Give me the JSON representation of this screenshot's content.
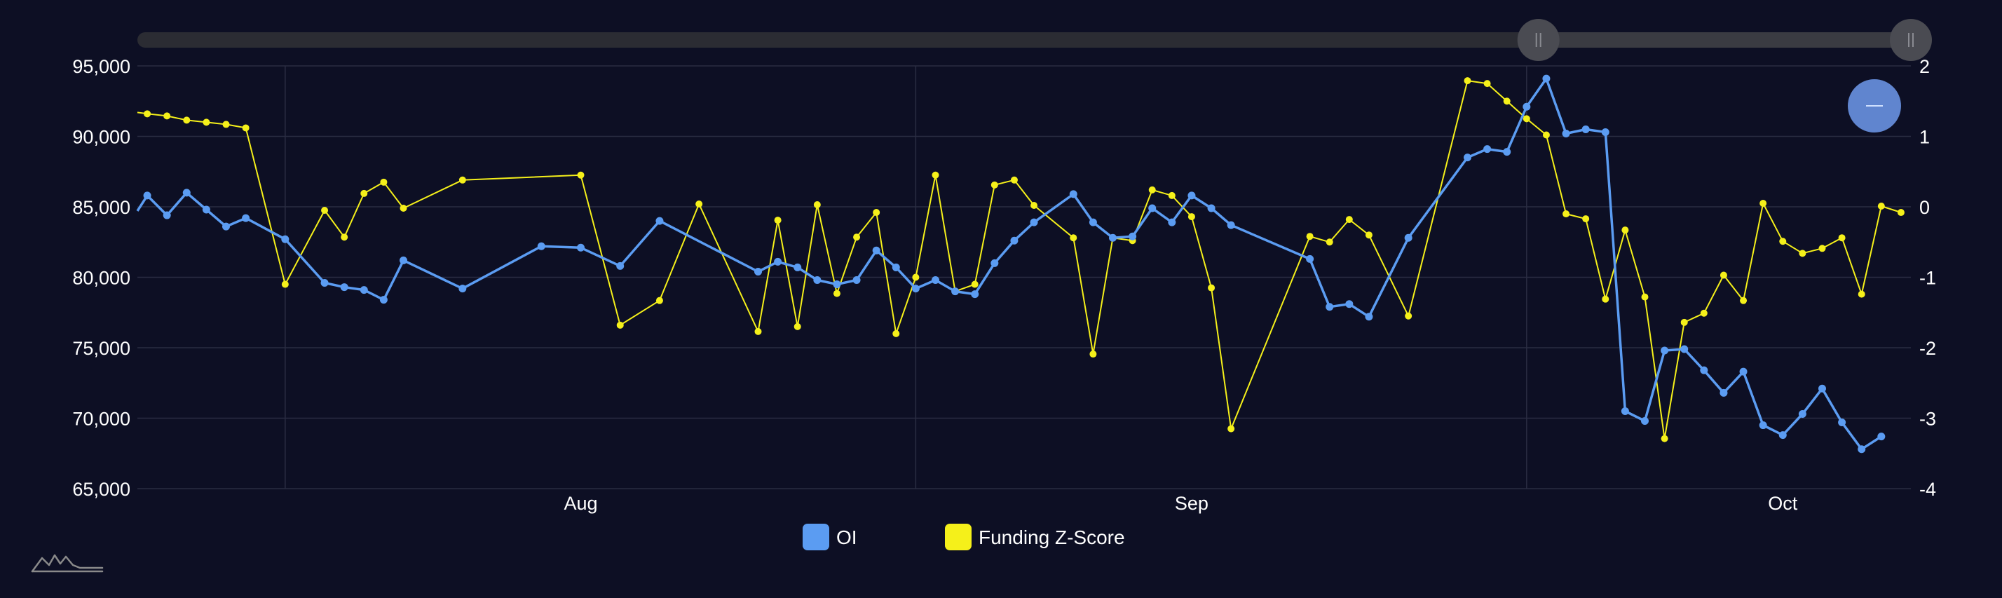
{
  "colors": {
    "background": "#0d0f24",
    "grid": "#2a2d42",
    "oi": "#5b9cf2",
    "funding": "#f5f01a",
    "scrollbar_track": "#2b2c33",
    "scrollbar_selected": "#3a3b42",
    "scrollbar_handle": "#4a4b52",
    "zoom_button": "#6085cf"
  },
  "icons": {
    "zoom_button": "minus-icon",
    "brand_logo": "mountain-logo-icon"
  },
  "legend": {
    "oi_label": "OI",
    "funding_label": "Funding Z-Score"
  },
  "navigator": {
    "selected_range": [
      0.79,
      1.0
    ]
  },
  "chart_data": {
    "type": "line",
    "x_tick_labels": [
      "Aug",
      "Sep",
      "Oct"
    ],
    "y_left": {
      "ticks": [
        "65,000",
        "70,000",
        "75,000",
        "80,000",
        "85,000",
        "90,000",
        "95,000"
      ],
      "min": 65000,
      "max": 95000
    },
    "y_right": {
      "ticks": [
        "-4",
        "-3",
        "-2",
        "-1",
        "0",
        "1",
        "2"
      ],
      "min": -4,
      "max": 2
    },
    "grid": true,
    "legend_position": "bottom-center",
    "series": [
      {
        "name": "OI",
        "axis": "left",
        "points": [
          [
            "Jul 10",
            85800
          ],
          [
            "Jul 11",
            84400
          ],
          [
            "Jul 12",
            86000
          ],
          [
            "Jul 13",
            84800
          ],
          [
            "Jul 14",
            83600
          ],
          [
            "Jul 15",
            84200
          ],
          [
            "Jul 17",
            82700
          ],
          [
            "Jul 19",
            79600
          ],
          [
            "Jul 20",
            79300
          ],
          [
            "Jul 21",
            79100
          ],
          [
            "Jul 22",
            78400
          ],
          [
            "Jul 23",
            81200
          ],
          [
            "Jul 26",
            79200
          ],
          [
            "Jul 30",
            82200
          ],
          [
            "Aug 1",
            82100
          ],
          [
            "Aug 3",
            80800
          ],
          [
            "Aug 5",
            84000
          ],
          [
            "Aug 10",
            80400
          ],
          [
            "Aug 11",
            81100
          ],
          [
            "Aug 12",
            80700
          ],
          [
            "Aug 13",
            79800
          ],
          [
            "Aug 14",
            79500
          ],
          [
            "Aug 15",
            79800
          ],
          [
            "Aug 16",
            81900
          ],
          [
            "Aug 17",
            80700
          ],
          [
            "Aug 18",
            79200
          ],
          [
            "Aug 19",
            79800
          ],
          [
            "Aug 20",
            79000
          ],
          [
            "Aug 21",
            78800
          ],
          [
            "Aug 22",
            81000
          ],
          [
            "Aug 23",
            82600
          ],
          [
            "Aug 24",
            83900
          ],
          [
            "Aug 26",
            85900
          ],
          [
            "Aug 27",
            83900
          ],
          [
            "Aug 28",
            82800
          ],
          [
            "Aug 29",
            82900
          ],
          [
            "Aug 30",
            84900
          ],
          [
            "Aug 31",
            83900
          ],
          [
            "Sep 1",
            85800
          ],
          [
            "Sep 2",
            84900
          ],
          [
            "Sep 3",
            83700
          ],
          [
            "Sep 7",
            81300
          ],
          [
            "Sep 8",
            77900
          ],
          [
            "Sep 9",
            78100
          ],
          [
            "Sep 10",
            77200
          ],
          [
            "Sep 12",
            82800
          ],
          [
            "Sep 15",
            88500
          ],
          [
            "Sep 16",
            89100
          ],
          [
            "Sep 17",
            88900
          ],
          [
            "Sep 18",
            92100
          ],
          [
            "Sep 19",
            94100
          ],
          [
            "Sep 20",
            90200
          ],
          [
            "Sep 21",
            90500
          ],
          [
            "Sep 22",
            90300
          ],
          [
            "Sep 23",
            70500
          ],
          [
            "Sep 24",
            69800
          ],
          [
            "Sep 25",
            74800
          ],
          [
            "Sep 26",
            74900
          ],
          [
            "Sep 27",
            73400
          ],
          [
            "Sep 28",
            71800
          ],
          [
            "Sep 29",
            73300
          ],
          [
            "Sep 30",
            69500
          ],
          [
            "Oct 1",
            68800
          ],
          [
            "Oct 2",
            70300
          ],
          [
            "Oct 3",
            72100
          ],
          [
            "Oct 4",
            69700
          ],
          [
            "Oct 5",
            67800
          ],
          [
            "Oct 6",
            68700
          ]
        ]
      },
      {
        "name": "Funding Z-Score",
        "axis": "right",
        "points": [
          [
            "Jul 10",
            1.32
          ],
          [
            "Jul 11",
            1.29
          ],
          [
            "Jul 12",
            1.23
          ],
          [
            "Jul 13",
            1.2
          ],
          [
            "Jul 14",
            1.17
          ],
          [
            "Jul 15",
            1.12
          ],
          [
            "Jul 17",
            -1.1
          ],
          [
            "Jul 19",
            -0.05
          ],
          [
            "Jul 20",
            -0.43
          ],
          [
            "Jul 21",
            0.19
          ],
          [
            "Jul 22",
            0.35
          ],
          [
            "Jul 23",
            -0.02
          ],
          [
            "Jul 26",
            0.38
          ],
          [
            "Aug 1",
            0.45
          ],
          [
            "Aug 3",
            -1.68
          ],
          [
            "Aug 5",
            -1.33
          ],
          [
            "Aug 7",
            0.04
          ],
          [
            "Aug 10",
            -1.77
          ],
          [
            "Aug 11",
            -0.19
          ],
          [
            "Aug 12",
            -1.7
          ],
          [
            "Aug 13",
            0.03
          ],
          [
            "Aug 14",
            -1.23
          ],
          [
            "Aug 15",
            -0.43
          ],
          [
            "Aug 16",
            -0.08
          ],
          [
            "Aug 17",
            -1.8
          ],
          [
            "Aug 18",
            -1.0
          ],
          [
            "Aug 19",
            0.45
          ],
          [
            "Aug 20",
            -1.2
          ],
          [
            "Aug 21",
            -1.1
          ],
          [
            "Aug 22",
            0.31
          ],
          [
            "Aug 23",
            0.38
          ],
          [
            "Aug 24",
            0.02
          ],
          [
            "Aug 26",
            -0.44
          ],
          [
            "Aug 27",
            -2.09
          ],
          [
            "Aug 28",
            -0.44
          ],
          [
            "Aug 29",
            -0.48
          ],
          [
            "Aug 30",
            0.24
          ],
          [
            "Aug 31",
            0.16
          ],
          [
            "Sep 1",
            -0.14
          ],
          [
            "Sep 2",
            -1.15
          ],
          [
            "Sep 3",
            -3.15
          ],
          [
            "Sep 7",
            -0.42
          ],
          [
            "Sep 8",
            -0.5
          ],
          [
            "Sep 9",
            -0.18
          ],
          [
            "Sep 10",
            -0.4
          ],
          [
            "Sep 12",
            -1.55
          ],
          [
            "Sep 15",
            1.79
          ],
          [
            "Sep 16",
            1.75
          ],
          [
            "Sep 17",
            1.5
          ],
          [
            "Sep 18",
            1.25
          ],
          [
            "Sep 19",
            1.02
          ],
          [
            "Sep 20",
            -0.1
          ],
          [
            "Sep 21",
            -0.17
          ],
          [
            "Sep 22",
            -1.31
          ],
          [
            "Sep 23",
            -0.33
          ],
          [
            "Sep 24",
            -1.28
          ],
          [
            "Sep 25",
            -3.29
          ],
          [
            "Sep 26",
            -1.64
          ],
          [
            "Sep 27",
            -1.51
          ],
          [
            "Sep 28",
            -0.97
          ],
          [
            "Sep 29",
            -1.33
          ],
          [
            "Sep 30",
            0.05
          ],
          [
            "Oct 1",
            -0.49
          ],
          [
            "Oct 2",
            -0.66
          ],
          [
            "Oct 3",
            -0.59
          ],
          [
            "Oct 4",
            -0.44
          ],
          [
            "Oct 5",
            -1.24
          ],
          [
            "Oct 6",
            0.01
          ],
          [
            "Oct 7",
            -0.08
          ]
        ]
      }
    ]
  }
}
